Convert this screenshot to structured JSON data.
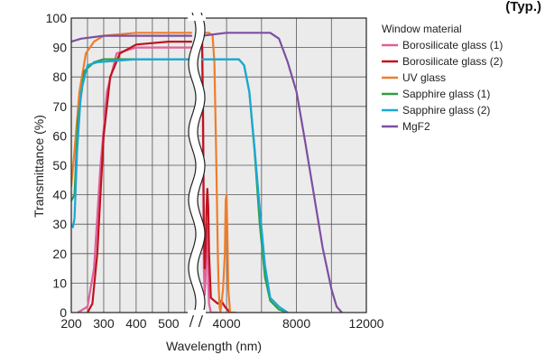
{
  "chart_data": {
    "type": "line",
    "title": "(Typ.)",
    "xlabel": "Wavelength (nm)",
    "ylabel": "Transmittance (%)",
    "x_axis_note": "broken axis",
    "ylim": [
      0,
      100
    ],
    "y_ticks": [
      "0",
      "10",
      "20",
      "30",
      "40",
      "50",
      "60",
      "70",
      "80",
      "90",
      "100"
    ],
    "x_ticks_left": [
      "200",
      "300",
      "400",
      "500"
    ],
    "x_ticks_right": [
      "4000",
      "8000",
      "12000"
    ],
    "grid": true,
    "legend_title": "Window material",
    "legend_position": "right",
    "series": [
      {
        "name": "Borosilicate glass (1)",
        "color": "#e0609a",
        "left": [
          [
            220,
            0
          ],
          [
            250,
            2
          ],
          [
            270,
            15
          ],
          [
            290,
            50
          ],
          [
            310,
            75
          ],
          [
            340,
            88
          ],
          [
            400,
            90
          ],
          [
            500,
            90
          ],
          [
            570,
            90
          ]
        ],
        "right": [
          [
            2600,
            92
          ],
          [
            2650,
            60
          ],
          [
            2700,
            15
          ],
          [
            2750,
            6
          ],
          [
            2800,
            12
          ],
          [
            2850,
            25
          ],
          [
            2900,
            30
          ],
          [
            2950,
            10
          ],
          [
            3000,
            3
          ],
          [
            3100,
            0
          ],
          [
            3500,
            0
          ]
        ]
      },
      {
        "name": "Borosilicate glass (2)",
        "color": "#c0131e",
        "left": [
          [
            250,
            0
          ],
          [
            265,
            3
          ],
          [
            280,
            20
          ],
          [
            300,
            60
          ],
          [
            320,
            80
          ],
          [
            350,
            88
          ],
          [
            400,
            91
          ],
          [
            500,
            92
          ],
          [
            570,
            92
          ]
        ],
        "right": [
          [
            2600,
            92
          ],
          [
            2650,
            70
          ],
          [
            2700,
            30
          ],
          [
            2750,
            15
          ],
          [
            2800,
            22
          ],
          [
            2850,
            35
          ],
          [
            2900,
            42
          ],
          [
            2950,
            36
          ],
          [
            3000,
            20
          ],
          [
            3100,
            5
          ],
          [
            3300,
            4
          ],
          [
            3500,
            3
          ],
          [
            3700,
            4
          ],
          [
            3900,
            2
          ],
          [
            4200,
            0
          ]
        ]
      },
      {
        "name": "UV glass",
        "color": "#ee7d2b",
        "left": [
          [
            200,
            43
          ],
          [
            210,
            55
          ],
          [
            225,
            75
          ],
          [
            245,
            88
          ],
          [
            270,
            92
          ],
          [
            300,
            94
          ],
          [
            400,
            95
          ],
          [
            500,
            95
          ],
          [
            570,
            95
          ]
        ],
        "right": [
          [
            2600,
            95
          ],
          [
            3000,
            95
          ],
          [
            3200,
            94
          ],
          [
            3300,
            85
          ],
          [
            3400,
            55
          ],
          [
            3500,
            20
          ],
          [
            3550,
            8
          ],
          [
            3600,
            2
          ],
          [
            3650,
            0
          ],
          [
            3800,
            8
          ],
          [
            3900,
            20
          ],
          [
            3950,
            38
          ],
          [
            4000,
            40
          ],
          [
            4050,
            25
          ],
          [
            4100,
            8
          ],
          [
            4200,
            0
          ],
          [
            4500,
            0
          ]
        ]
      },
      {
        "name": "Sapphire glass (1)",
        "color": "#2e9e46",
        "left": [
          [
            200,
            38
          ],
          [
            210,
            40
          ],
          [
            220,
            65
          ],
          [
            240,
            82
          ],
          [
            270,
            85
          ],
          [
            300,
            86
          ],
          [
            400,
            86
          ],
          [
            500,
            86
          ],
          [
            570,
            86
          ]
        ],
        "right": [
          [
            2600,
            86
          ],
          [
            4000,
            86
          ],
          [
            4700,
            86
          ],
          [
            5000,
            84
          ],
          [
            5300,
            75
          ],
          [
            5600,
            55
          ],
          [
            5900,
            30
          ],
          [
            6200,
            12
          ],
          [
            6500,
            4
          ],
          [
            7000,
            1
          ],
          [
            7500,
            0
          ]
        ]
      },
      {
        "name": "Sapphire glass (2)",
        "color": "#1aa7d6",
        "left": [
          [
            200,
            30
          ],
          [
            205,
            29
          ],
          [
            210,
            32
          ],
          [
            218,
            55
          ],
          [
            230,
            75
          ],
          [
            250,
            84
          ],
          [
            280,
            85
          ],
          [
            400,
            86
          ],
          [
            500,
            86
          ],
          [
            570,
            86
          ]
        ],
        "right": [
          [
            2600,
            86
          ],
          [
            4000,
            86
          ],
          [
            4700,
            86
          ],
          [
            5000,
            84
          ],
          [
            5300,
            75
          ],
          [
            5600,
            56
          ],
          [
            5900,
            35
          ],
          [
            6200,
            16
          ],
          [
            6500,
            5
          ],
          [
            7000,
            2
          ],
          [
            7500,
            0
          ]
        ]
      },
      {
        "name": "MgF2",
        "color": "#7d4fa0",
        "left": [
          [
            200,
            92
          ],
          [
            230,
            93
          ],
          [
            300,
            94
          ],
          [
            400,
            94
          ],
          [
            500,
            94
          ],
          [
            570,
            94
          ]
        ],
        "right": [
          [
            2600,
            94
          ],
          [
            4000,
            95
          ],
          [
            5000,
            95
          ],
          [
            6500,
            95
          ],
          [
            7000,
            93
          ],
          [
            7500,
            85
          ],
          [
            8000,
            75
          ],
          [
            8500,
            58
          ],
          [
            9000,
            40
          ],
          [
            9500,
            22
          ],
          [
            10000,
            8
          ],
          [
            10300,
            2
          ],
          [
            10600,
            0
          ]
        ]
      }
    ]
  }
}
